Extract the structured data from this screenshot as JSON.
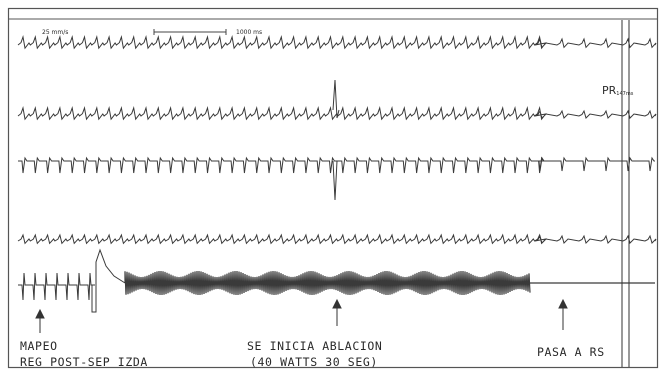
{
  "calibration": {
    "speed": "25 mm/s",
    "time_scale": "1000 ms"
  },
  "annotations": {
    "pr": "PR",
    "pr_value": "147ms",
    "mapping_line1": "MAPEO",
    "mapping_line2": "REG POST-SEP IZDA",
    "ablation_line1": "SE INICIA ABLACION",
    "ablation_line2": "(40 WATTS 30 SEG)",
    "sinus": "PASA A RS"
  },
  "colors": {
    "trace": "#3a3a3a",
    "frame": "#555555",
    "background": "#ffffff"
  }
}
